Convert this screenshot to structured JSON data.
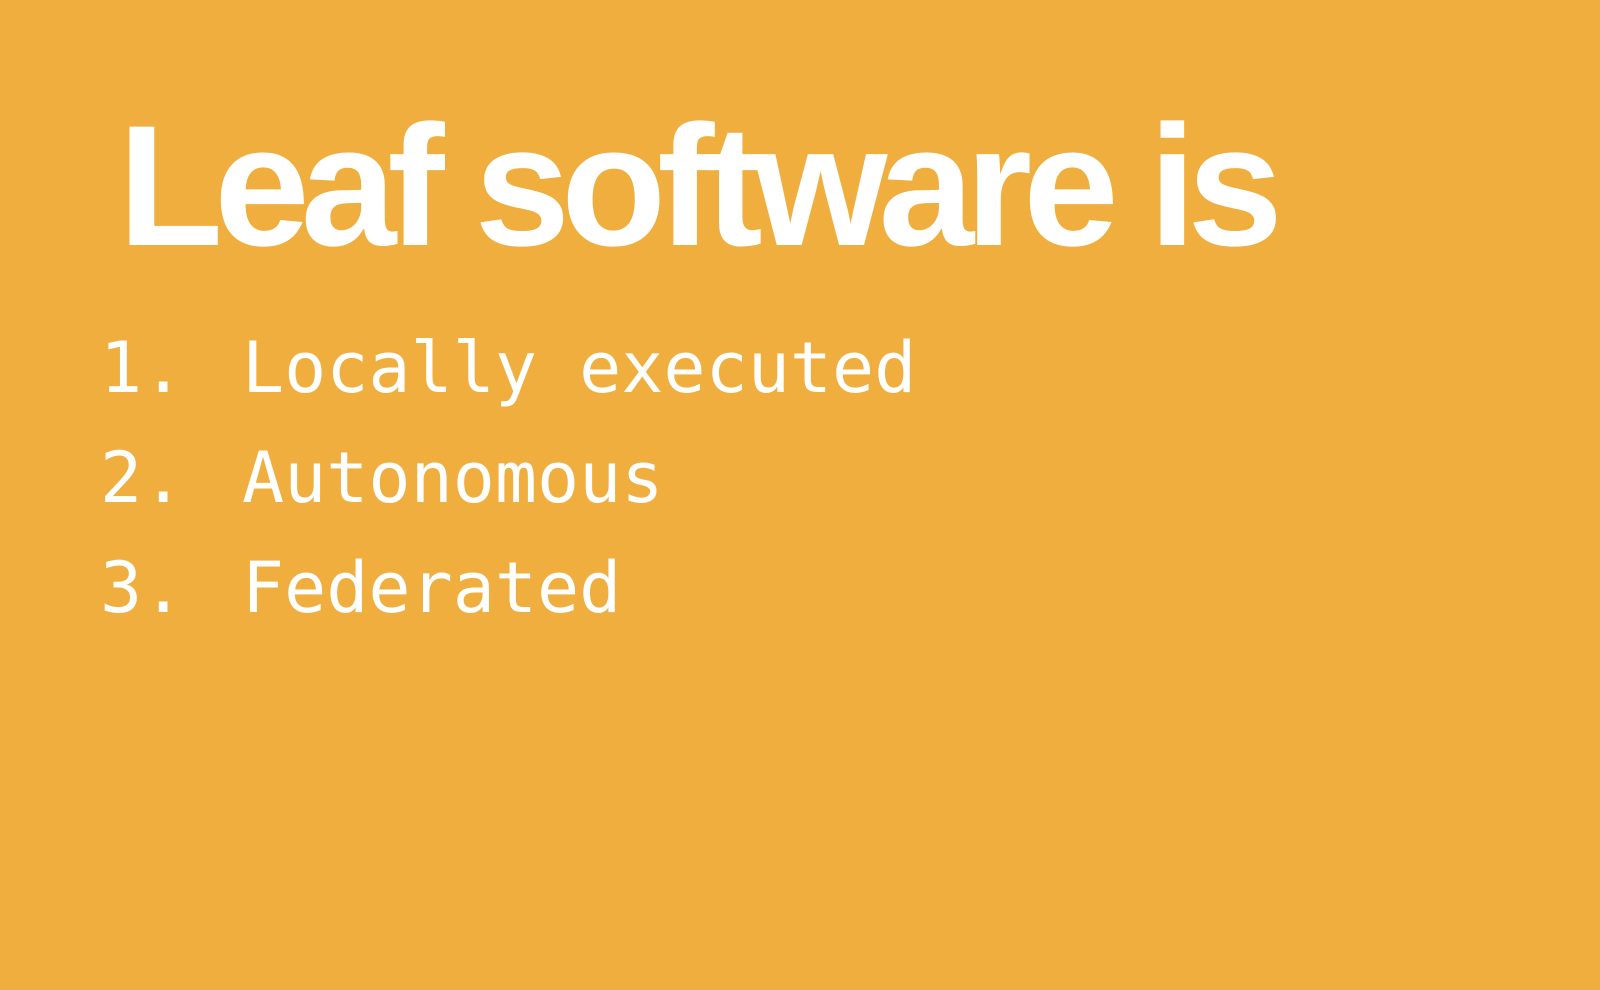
{
  "slide": {
    "title": "Leaf software is",
    "items": [
      {
        "number": "1.",
        "label": "Locally executed"
      },
      {
        "number": "2.",
        "label": "Autonomous"
      },
      {
        "number": "3.",
        "label": "Federated"
      }
    ],
    "colors": {
      "background": "#F0AE3E",
      "text": "#FFFFFF"
    }
  }
}
